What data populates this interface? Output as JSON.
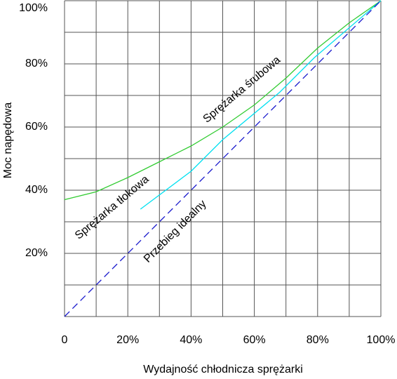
{
  "chart_data": {
    "type": "line",
    "x_label": "Wydajność chłodnicza sprężarki",
    "y_label": "Moc napędowa",
    "xlim": [
      0,
      100
    ],
    "ylim": [
      0,
      100
    ],
    "xticks": [
      {
        "value": 0,
        "label": "0"
      },
      {
        "value": 20,
        "label": "20%"
      },
      {
        "value": 40,
        "label": "40%"
      },
      {
        "value": 60,
        "label": "60%"
      },
      {
        "value": 80,
        "label": "80%"
      },
      {
        "value": 100,
        "label": "100%"
      }
    ],
    "yticks": [
      {
        "value": 20,
        "label": "20%"
      },
      {
        "value": 40,
        "label": "40%"
      },
      {
        "value": 60,
        "label": "60%"
      },
      {
        "value": 80,
        "label": "80%"
      },
      {
        "value": 100,
        "label": "100%"
      }
    ],
    "minor_xticks": [
      10,
      30,
      50,
      70,
      90
    ],
    "minor_yticks": [
      0,
      10,
      30,
      50,
      70,
      90
    ],
    "grid": true,
    "series": [
      {
        "name": "Sprężarka tłokowa",
        "color": "#33cc33",
        "dash": false,
        "x": [
          0,
          10,
          20,
          30,
          40,
          50,
          60,
          70,
          80,
          90,
          100
        ],
        "values": [
          37,
          39.5,
          44,
          49,
          54,
          60,
          67,
          75.5,
          85,
          93,
          100
        ]
      },
      {
        "name": "Sprężarka śrubowa",
        "color": "#00e0f0",
        "dash": false,
        "x": [
          24,
          40,
          50,
          68,
          79,
          100
        ],
        "values": [
          34,
          46,
          56,
          71,
          82,
          100
        ]
      },
      {
        "name": "Przebieg idealny",
        "color": "#1a1acc",
        "dash": true,
        "x": [
          0,
          100
        ],
        "values": [
          0,
          100
        ]
      }
    ]
  }
}
